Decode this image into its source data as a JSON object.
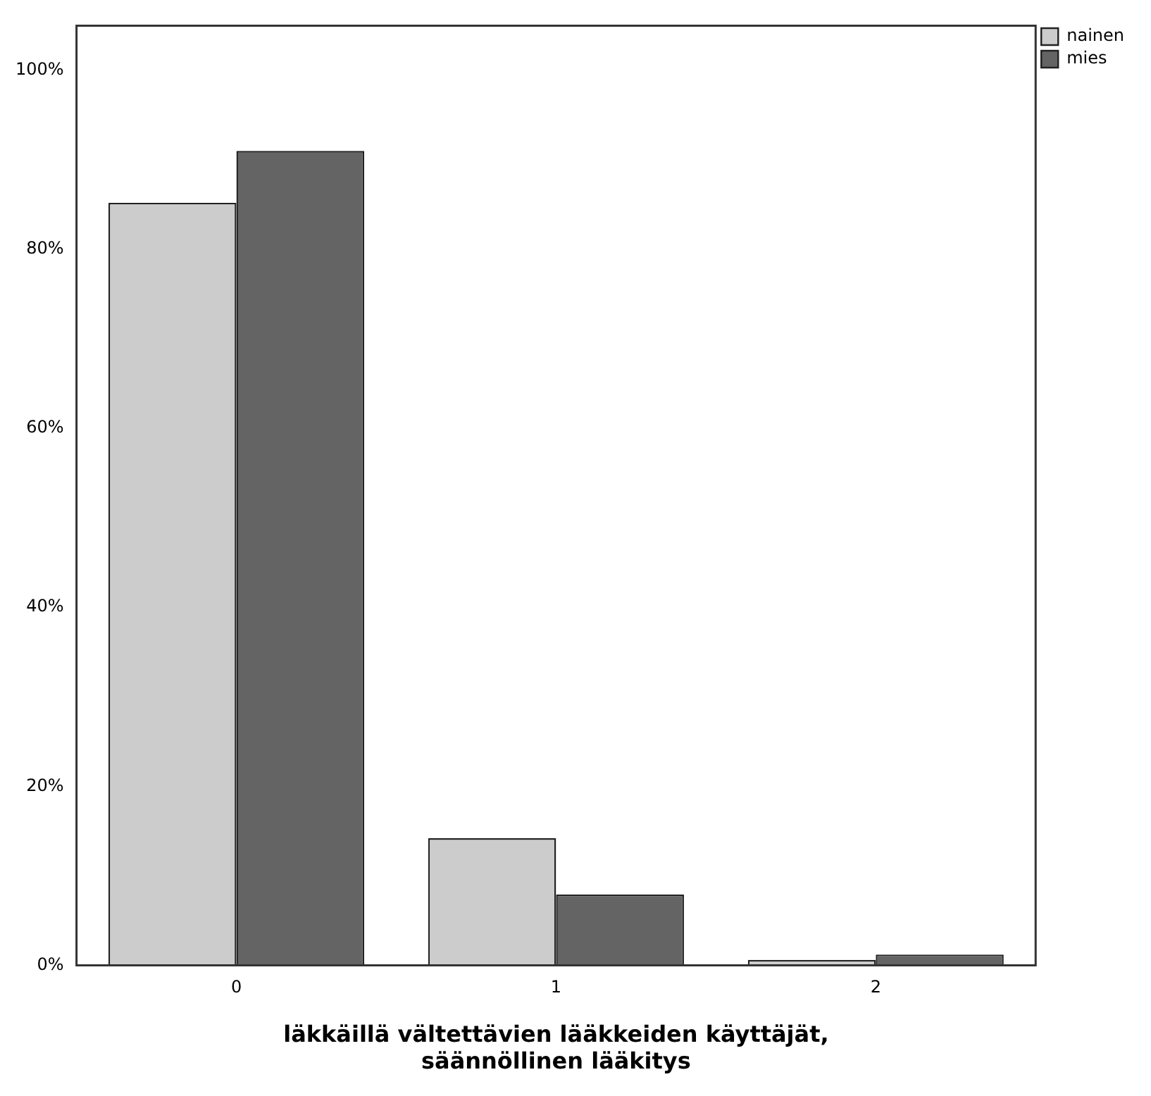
{
  "chart_data": {
    "type": "bar",
    "xlabel": "läkkäillä vältettävien lääkkeiden käyttäjät,\nsäännöllinen lääkitys",
    "categories": [
      "0",
      "1",
      "2"
    ],
    "series": [
      {
        "name": "nainen",
        "color": "#cccccc",
        "values": [
          85.2,
          14.2,
          0.6
        ]
      },
      {
        "name": "mies",
        "color": "#646464",
        "values": [
          91.0,
          7.9,
          1.2
        ]
      }
    ],
    "ylim": [
      0,
      105
    ],
    "yticks": [
      {
        "value": 0,
        "label": "0%"
      },
      {
        "value": 20,
        "label": "20%"
      },
      {
        "value": 40,
        "label": "40%"
      },
      {
        "value": 60,
        "label": "60%"
      },
      {
        "value": 80,
        "label": "80%"
      },
      {
        "value": 100,
        "label": "100%"
      }
    ],
    "grid": false,
    "legend": "top right"
  }
}
